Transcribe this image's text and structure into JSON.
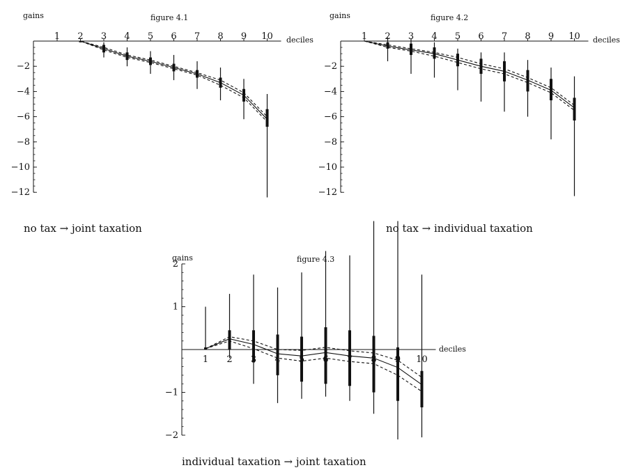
{
  "chart_data": [
    {
      "type": "line",
      "title": "figure 4.1",
      "caption": "no tax → joint taxation",
      "ylabel": "gains",
      "xlabel": "deciles",
      "categories": [
        1,
        2,
        3,
        4,
        5,
        6,
        7,
        8,
        9,
        10
      ],
      "ylim": [
        -12,
        0
      ],
      "yticks": [
        -2,
        -4,
        -6,
        -8,
        -10,
        -12
      ],
      "ytick_labels": [
        "−2",
        "−4",
        "−6",
        "−8",
        "−10",
        "−12"
      ],
      "grid": false,
      "series": [
        {
          "style": "solid",
          "values": [
            0,
            0,
            -0.6,
            -1.2,
            -1.6,
            -2.1,
            -2.6,
            -3.3,
            -4.3,
            -6.2
          ]
        },
        {
          "style": "dashed",
          "values": [
            0,
            0,
            -0.5,
            -1.1,
            -1.5,
            -2.0,
            -2.5,
            -3.1,
            -4.1,
            -6.0
          ]
        },
        {
          "style": "dashed",
          "values": [
            0,
            0,
            -0.7,
            -1.3,
            -1.7,
            -2.2,
            -2.7,
            -3.5,
            -4.5,
            -6.4
          ]
        }
      ],
      "intervals_outer": [
        [
          0,
          0
        ],
        [
          0,
          0
        ],
        [
          -1.3,
          -0.1
        ],
        [
          -2.0,
          -0.5
        ],
        [
          -2.6,
          -0.8
        ],
        [
          -3.1,
          -1.1
        ],
        [
          -3.8,
          -1.6
        ],
        [
          -4.7,
          -2.1
        ],
        [
          -6.2,
          -3.0
        ],
        [
          -12.4,
          -4.2
        ]
      ],
      "intervals_inner": [
        [
          0,
          0
        ],
        [
          -0.1,
          0
        ],
        [
          -0.9,
          -0.3
        ],
        [
          -1.5,
          -0.9
        ],
        [
          -1.9,
          -1.3
        ],
        [
          -2.4,
          -1.8
        ],
        [
          -2.9,
          -2.3
        ],
        [
          -3.7,
          -2.9
        ],
        [
          -4.8,
          -3.8
        ],
        [
          -6.8,
          -5.4
        ]
      ]
    },
    {
      "type": "line",
      "title": "figure 4.2",
      "caption": "no tax → individual taxation",
      "ylabel": "gains",
      "xlabel": "deciles",
      "categories": [
        1,
        2,
        3,
        4,
        5,
        6,
        7,
        8,
        9,
        10
      ],
      "ylim": [
        -12,
        0
      ],
      "yticks": [
        -2,
        -4,
        -6,
        -8,
        -10,
        -12
      ],
      "ytick_labels": [
        "−2",
        "−4",
        "−6",
        "−8",
        "−10",
        "−12"
      ],
      "grid": false,
      "series": [
        {
          "style": "solid",
          "values": [
            0,
            -0.4,
            -0.7,
            -1.0,
            -1.5,
            -2.0,
            -2.4,
            -3.1,
            -3.9,
            -5.3
          ]
        },
        {
          "style": "dashed",
          "values": [
            0,
            -0.3,
            -0.6,
            -0.9,
            -1.3,
            -1.8,
            -2.2,
            -2.9,
            -3.7,
            -5.1
          ]
        },
        {
          "style": "dashed",
          "values": [
            0,
            -0.5,
            -0.8,
            -1.2,
            -1.7,
            -2.2,
            -2.6,
            -3.3,
            -4.1,
            -5.5
          ]
        }
      ],
      "intervals_outer": [
        [
          0,
          0
        ],
        [
          -1.6,
          0.3
        ],
        [
          -2.6,
          0.2
        ],
        [
          -2.9,
          -0.1
        ],
        [
          -3.9,
          -0.6
        ],
        [
          -4.8,
          -0.9
        ],
        [
          -5.6,
          -0.9
        ],
        [
          -6.0,
          -1.5
        ],
        [
          -7.8,
          -2.1
        ],
        [
          -12.3,
          -2.8
        ]
      ],
      "intervals_inner": [
        [
          0,
          0
        ],
        [
          -0.6,
          -0.1
        ],
        [
          -1.1,
          -0.2
        ],
        [
          -1.4,
          -0.5
        ],
        [
          -2.0,
          -1.0
        ],
        [
          -2.6,
          -1.4
        ],
        [
          -3.2,
          -1.6
        ],
        [
          -4.0,
          -2.3
        ],
        [
          -4.7,
          -3.0
        ],
        [
          -6.3,
          -4.5
        ]
      ]
    },
    {
      "type": "line",
      "title": "figure 4.3",
      "caption": "individual taxation → joint taxation",
      "ylabel": "gains",
      "xlabel": "deciles",
      "categories": [
        1,
        2,
        3,
        4,
        5,
        6,
        7,
        8,
        9,
        10
      ],
      "ylim": [
        -2,
        2
      ],
      "yticks": [
        2,
        1,
        -1,
        -2
      ],
      "ytick_labels": [
        "2",
        "1",
        "−1",
        "−2"
      ],
      "grid": false,
      "series": [
        {
          "style": "solid",
          "values": [
            0.02,
            0.25,
            0.12,
            -0.1,
            -0.15,
            -0.07,
            -0.15,
            -0.2,
            -0.42,
            -0.82
          ]
        },
        {
          "style": "dashed",
          "values": [
            0.02,
            0.3,
            0.2,
            0.0,
            -0.02,
            0.05,
            -0.03,
            -0.08,
            -0.25,
            -0.65
          ]
        },
        {
          "style": "dashed",
          "values": [
            0.02,
            0.2,
            0.02,
            -0.2,
            -0.27,
            -0.2,
            -0.28,
            -0.33,
            -0.6,
            -0.98
          ]
        }
      ],
      "intervals_outer": [
        [
          0.0,
          1.0
        ],
        [
          -0.2,
          1.3
        ],
        [
          -0.8,
          1.75
        ],
        [
          -1.25,
          1.45
        ],
        [
          -1.15,
          1.8
        ],
        [
          -1.1,
          2.3
        ],
        [
          -1.2,
          2.2
        ],
        [
          -1.5,
          3.0
        ],
        [
          -2.1,
          3.0
        ],
        [
          -2.05,
          1.75
        ]
      ],
      "intervals_inner": [
        [
          0.0,
          0.05
        ],
        [
          0.0,
          0.45
        ],
        [
          -0.3,
          0.45
        ],
        [
          -0.6,
          0.35
        ],
        [
          -0.75,
          0.3
        ],
        [
          -0.8,
          0.52
        ],
        [
          -0.85,
          0.45
        ],
        [
          -1.0,
          0.32
        ],
        [
          -1.2,
          0.05
        ],
        [
          -1.35,
          -0.5
        ]
      ]
    }
  ]
}
